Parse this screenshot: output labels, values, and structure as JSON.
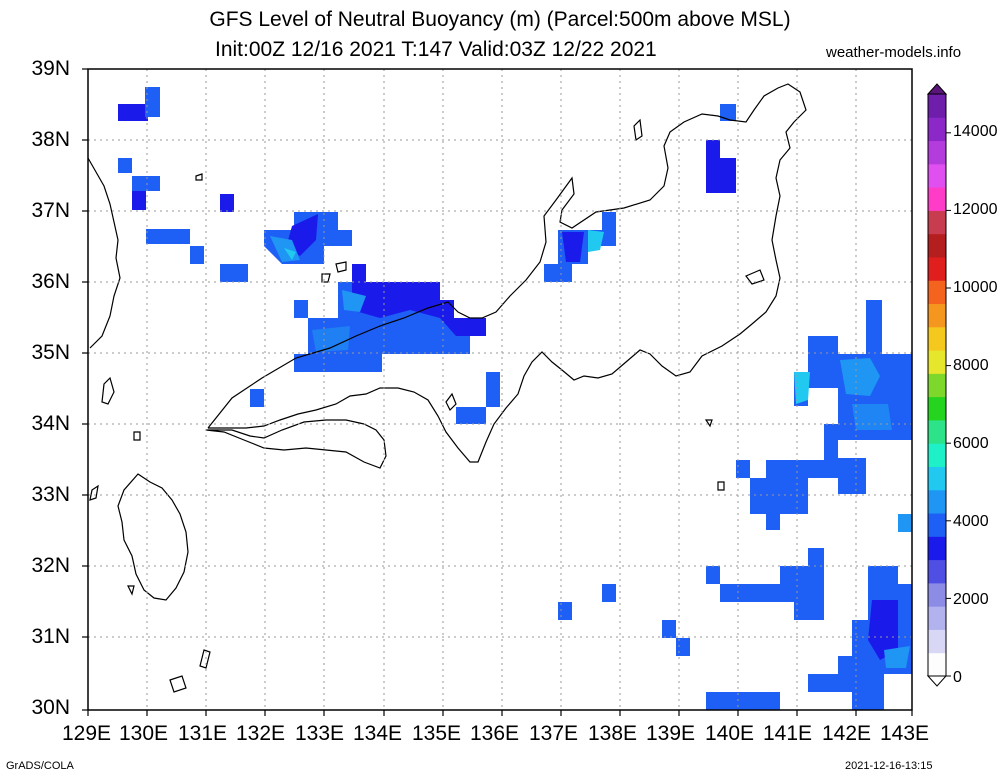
{
  "title": "GFS Level of Neutral Buoyancy (m) (Parcel:500m above MSL)",
  "subtitle": "Init:00Z 12/16 2021 T:147 Valid:03Z 12/22 2021",
  "site": "weather-models.info",
  "footer_left": "GrADS/COLA",
  "footer_right": "2021-12-16-13:15",
  "latitude_labels": [
    "39N",
    "38N",
    "37N",
    "36N",
    "35N",
    "34N",
    "33N",
    "32N",
    "31N",
    "30N"
  ],
  "longitude_labels": [
    "129E",
    "130E",
    "131E",
    "132E",
    "133E",
    "134E",
    "135E",
    "136E",
    "137E",
    "138E",
    "139E",
    "140E",
    "141E",
    "142E",
    "143E"
  ],
  "colorbar": {
    "labels": [
      "14000",
      "12000",
      "10000",
      "8000",
      "6000",
      "4000",
      "2000",
      "0"
    ],
    "colors": [
      "#fdfdfd",
      "#d8d8f6",
      "#b2b2ee",
      "#8c8ce6",
      "#4f4fe3",
      "#1a1aeb",
      "#1e5ff5",
      "#1f96f4",
      "#21c8f0",
      "#1ef0c8",
      "#2ce38a",
      "#24d41e",
      "#7ed82c",
      "#e6e62c",
      "#f5c81e",
      "#f5961e",
      "#f5641e",
      "#e01e1e",
      "#b41e1e",
      "#c83c50",
      "#ff3cc8",
      "#e050f0",
      "#b43cdc",
      "#8c28c8",
      "#6e1eaa"
    ]
  },
  "legend_unit": "m",
  "palette": {
    "deep_blue": "#1a1aeb",
    "mid_blue": "#1e5ff5",
    "light_blue": "#1f96f4",
    "cyan": "#21c8f0"
  }
}
